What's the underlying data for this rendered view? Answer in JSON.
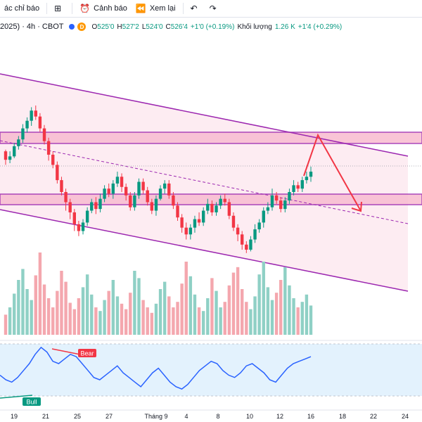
{
  "toolbar": {
    "indicators_label": "ác chỉ báo",
    "alert_label": "Cảnh báo",
    "replay_label": "Xem lại"
  },
  "legend": {
    "symbol": "2025) · 4h · CBOT",
    "badge": "D",
    "open_label": "O",
    "open": "525'0",
    "high_label": "H",
    "high": "527'2",
    "low_label": "L",
    "low": "524'0",
    "close_label": "C",
    "close": "526'4",
    "change": "+1'0 (+0.19%)",
    "volume_label": "Khối lượng",
    "volume": "1.26 K",
    "volume_change": "+1'4 (+0.29%)"
  },
  "x_axis_labels": [
    "19",
    "21",
    "25",
    "27",
    "Tháng 9",
    "4",
    "8",
    "10",
    "12",
    "16",
    "18",
    "22",
    "24"
  ],
  "rsi_labels": {
    "bear": "Bear",
    "bull": "Bull"
  },
  "colors": {
    "up": "#089981",
    "down": "#f23645",
    "channel": "#9c27b0",
    "zone_fill": "#f8bbd0",
    "arrow": "#f23645",
    "rsi_line": "#2962ff",
    "rsi_band": "#e3f2fd"
  },
  "chart_data": {
    "type": "candlestick",
    "candles": [
      [
        256,
        246,
        258,
        240
      ],
      [
        246,
        250,
        256,
        242
      ],
      [
        250,
        262,
        266,
        248
      ],
      [
        262,
        270,
        274,
        258
      ],
      [
        270,
        283,
        288,
        266
      ],
      [
        283,
        292,
        296,
        278
      ],
      [
        292,
        304,
        308,
        286
      ],
      [
        304,
        297,
        310,
        293
      ],
      [
        297,
        283,
        301,
        279
      ],
      [
        283,
        268,
        287,
        264
      ],
      [
        268,
        252,
        272,
        245
      ],
      [
        252,
        240,
        256,
        236
      ],
      [
        240,
        222,
        244,
        218
      ],
      [
        222,
        208,
        226,
        204
      ],
      [
        208,
        196,
        212,
        186
      ],
      [
        196,
        184,
        200,
        176
      ],
      [
        184,
        170,
        188,
        162
      ],
      [
        170,
        162,
        174,
        156
      ],
      [
        162,
        172,
        176,
        158
      ],
      [
        172,
        186,
        190,
        168
      ],
      [
        186,
        196,
        200,
        183
      ],
      [
        196,
        188,
        202,
        182
      ],
      [
        188,
        200,
        206,
        184
      ],
      [
        200,
        212,
        216,
        196
      ],
      [
        212,
        206,
        218,
        202
      ],
      [
        206,
        218,
        222,
        200
      ],
      [
        218,
        226,
        232,
        214
      ],
      [
        226,
        214,
        230,
        208
      ],
      [
        214,
        204,
        218,
        198
      ],
      [
        204,
        190,
        208,
        186
      ],
      [
        190,
        204,
        208,
        186
      ],
      [
        204,
        220,
        224,
        200
      ],
      [
        220,
        210,
        224,
        206
      ],
      [
        210,
        196,
        214,
        192
      ],
      [
        196,
        186,
        200,
        182
      ],
      [
        186,
        200,
        204,
        180
      ],
      [
        200,
        212,
        216,
        198
      ],
      [
        212,
        218,
        222,
        206
      ],
      [
        218,
        204,
        222,
        200
      ],
      [
        204,
        192,
        208,
        188
      ],
      [
        192,
        178,
        196,
        174
      ],
      [
        178,
        166,
        182,
        160
      ],
      [
        166,
        158,
        172,
        152
      ],
      [
        158,
        166,
        170,
        152
      ],
      [
        166,
        176,
        180,
        160
      ],
      [
        176,
        172,
        184,
        168
      ],
      [
        172,
        186,
        190,
        168
      ],
      [
        186,
        194,
        200,
        182
      ],
      [
        194,
        184,
        198,
        180
      ],
      [
        184,
        192,
        196,
        180
      ],
      [
        192,
        200,
        204,
        188
      ],
      [
        200,
        196,
        206,
        192
      ],
      [
        196,
        180,
        200,
        176
      ],
      [
        180,
        166,
        184,
        162
      ],
      [
        166,
        158,
        170,
        150
      ],
      [
        158,
        146,
        162,
        140
      ],
      [
        146,
        140,
        150,
        136
      ],
      [
        140,
        152,
        156,
        138
      ],
      [
        152,
        164,
        170,
        148
      ],
      [
        164,
        172,
        176,
        160
      ],
      [
        172,
        186,
        190,
        166
      ],
      [
        186,
        190,
        196,
        182
      ],
      [
        190,
        204,
        212,
        186
      ],
      [
        204,
        198,
        208,
        194
      ],
      [
        198,
        188,
        202,
        184
      ],
      [
        188,
        198,
        202,
        184
      ],
      [
        198,
        208,
        212,
        194
      ],
      [
        208,
        216,
        222,
        204
      ],
      [
        216,
        212,
        220,
        208
      ],
      [
        212,
        222,
        226,
        208
      ],
      [
        222,
        226,
        232,
        218
      ],
      [
        226,
        232,
        238,
        220
      ]
    ],
    "rsi": [
      48,
      44,
      42,
      46,
      52,
      58,
      66,
      72,
      68,
      60,
      58,
      62,
      66,
      64,
      58,
      52,
      46,
      44,
      48,
      52,
      56,
      50,
      46,
      42,
      38,
      44,
      50,
      54,
      48,
      42,
      38,
      36,
      40,
      46,
      52,
      56,
      60,
      58,
      52,
      48,
      46,
      50,
      56,
      58,
      54,
      50,
      44,
      42,
      48,
      54,
      58,
      60,
      62,
      64
    ]
  }
}
